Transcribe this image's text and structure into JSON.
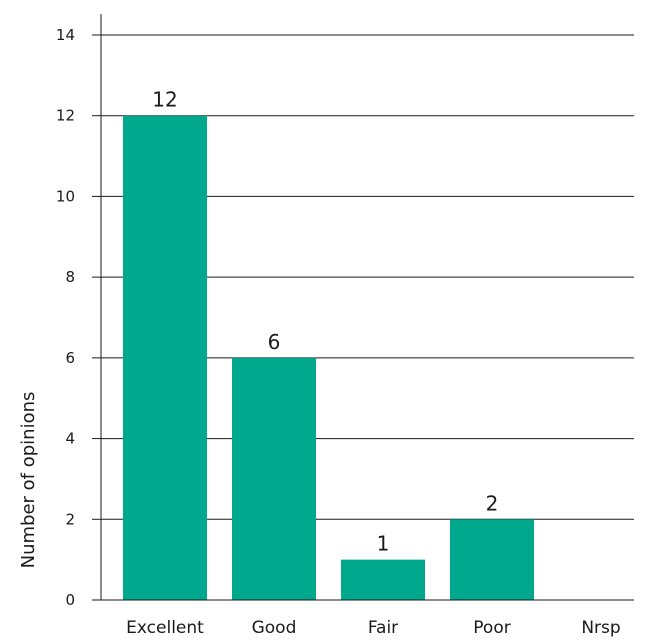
{
  "chart_data": {
    "type": "bar",
    "categories": [
      "Excellent",
      "Good",
      "Fair",
      "Poor",
      "Nrsp"
    ],
    "values": [
      12,
      6,
      1,
      2,
      0
    ],
    "value_labels": [
      "12",
      "6",
      "1",
      "2",
      ""
    ],
    "ylabel": "Number of opinions",
    "xlabel": "",
    "title": "",
    "ylim": [
      0,
      14
    ],
    "yticks": [
      0,
      2,
      4,
      6,
      8,
      10,
      12,
      14
    ],
    "grid": "horizontal",
    "bar_color": "#00a88e",
    "grid_color": "#1a1a1a"
  }
}
